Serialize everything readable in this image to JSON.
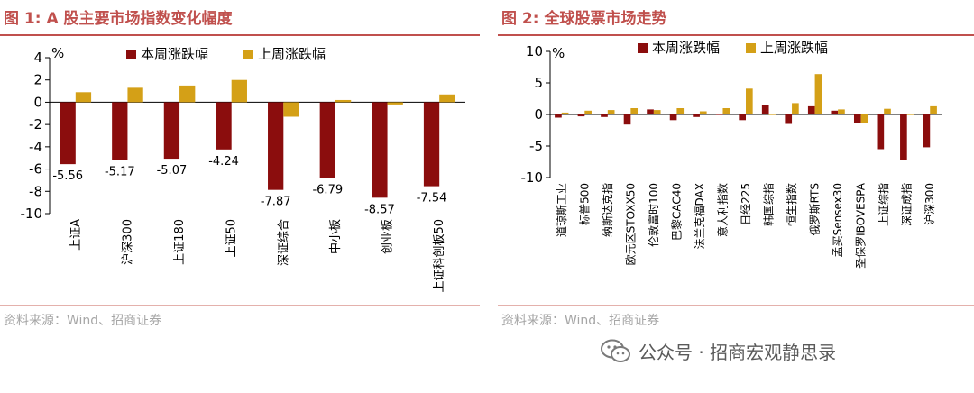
{
  "left_panel": {
    "title": "图 1: A 股主要市场指数变化幅度",
    "source": "资料来源：Wind、招商证券"
  },
  "right_panel": {
    "title": "图 2: 全球股票市场走势",
    "source": "资料来源：Wind、招商证券"
  },
  "watermark": {
    "text": "公众号 · 招商宏观静思录",
    "icon": "wechat-icon"
  },
  "colors": {
    "this_week": "#8b0d0d",
    "last_week": "#d4a017",
    "accent": "#c0504d"
  },
  "chart_data": [
    {
      "type": "bar",
      "unit_label": "%",
      "categories": [
        "上证A",
        "沪深300",
        "上证180",
        "上证50",
        "深证综合",
        "中小板",
        "创业板",
        "上证科创板50"
      ],
      "series": [
        {
          "name": "本周涨跌幅",
          "values": [
            -5.56,
            -5.17,
            -5.07,
            -4.24,
            -7.87,
            -6.79,
            -8.57,
            -7.54
          ]
        },
        {
          "name": "上周涨跌幅",
          "values": [
            0.9,
            1.3,
            1.5,
            2.0,
            -1.3,
            0.2,
            -0.2,
            0.7
          ]
        }
      ],
      "data_labels": [
        "-5.56",
        "-5.17",
        "-5.07",
        "-4.24",
        "-7.87",
        "-6.79",
        "-8.57",
        "-7.54"
      ],
      "yticks": [
        "4",
        "2",
        "0",
        "-2",
        "-4",
        "-6",
        "-8",
        "-10"
      ],
      "ylim": [
        -10,
        4
      ],
      "legend_position": "top"
    },
    {
      "type": "bar",
      "unit_label": "%",
      "categories": [
        "道琼斯工业",
        "标普500",
        "纳斯达克指",
        "欧元区STOXX50",
        "伦敦富时100",
        "巴黎CAC40",
        "法兰克福DAX",
        "意大利指数",
        "日经225",
        "韩国综指",
        "恒生指数",
        "俄罗斯RTS",
        "孟买Sensex30",
        "圣保罗IBOVESPA",
        "上证综指",
        "深证成指",
        "沪深300"
      ],
      "series": [
        {
          "name": "本周涨跌幅",
          "values": [
            -0.5,
            -0.3,
            -0.4,
            -1.6,
            0.8,
            -0.9,
            -0.4,
            0.0,
            -0.9,
            1.5,
            -1.5,
            1.3,
            0.6,
            -1.4,
            -5.5,
            -7.2,
            -5.2
          ]
        },
        {
          "name": "上周涨跌幅",
          "values": [
            0.3,
            0.6,
            0.7,
            1.0,
            0.7,
            1.0,
            0.5,
            1.0,
            4.1,
            0.0,
            1.8,
            6.4,
            0.8,
            -1.4,
            0.9,
            0.0,
            1.3
          ]
        }
      ],
      "yticks": [
        "10",
        "5",
        "0",
        "-5",
        "-10"
      ],
      "ylim": [
        -10,
        10
      ],
      "legend_position": "top"
    }
  ]
}
